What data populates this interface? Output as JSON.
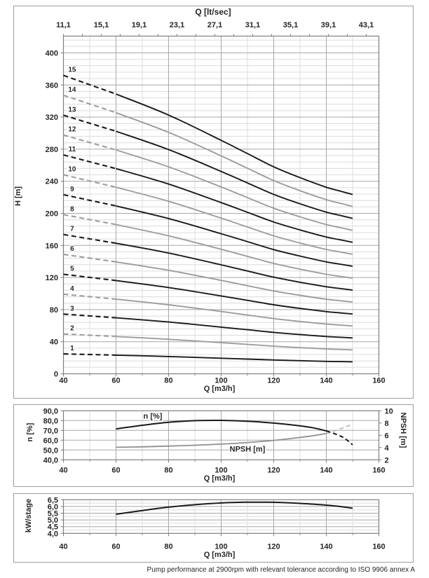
{
  "footer": "Pump performance at 2900rpm with relevant tolerance according to ISO 9906 annex A",
  "colors": {
    "curve_black": "#1a1a1a",
    "curve_gray": "#9d9d9d",
    "dashed_light_gray": "#b8b8b8",
    "grid_major": "#a8a8a8",
    "grid_minor": "#dcdcdc",
    "axis_frame": "#7f7f7f",
    "text": "#262626"
  },
  "chart_data": [
    {
      "id": "head_capacity",
      "type": "line",
      "top_axis_title": "Q [lt/sec]",
      "xlabel": "Q [m3/h]",
      "ylabel": "H [m]",
      "xlim": [
        40,
        160
      ],
      "ylim": [
        0,
        421
      ],
      "x_tick_values": [
        40,
        60,
        80,
        100,
        120,
        140,
        160
      ],
      "x_tick_labels": [
        "40",
        "60",
        "80",
        "100",
        "120",
        "140",
        "160"
      ],
      "x_minor_step": 10,
      "y_tick_values": [
        0,
        40,
        80,
        120,
        160,
        200,
        240,
        280,
        320,
        360,
        400
      ],
      "y_tick_labels": [
        "0",
        "40",
        "80",
        "120",
        "160",
        "200",
        "240",
        "280",
        "320",
        "360",
        "400"
      ],
      "y_minor_step": 8,
      "top_axis_labels": [
        "11,1",
        "15,1",
        "19,1",
        "23,1",
        "27,1",
        "31,1",
        "35,1",
        "39,1",
        "43,1"
      ],
      "top_axis_label_q_start": 40,
      "top_axis_label_q_step": 14.4,
      "top_axis_tick_q_step": 7.2,
      "q": [
        40,
        60,
        80,
        100,
        110,
        120,
        130,
        140,
        145,
        150
      ],
      "unit_head_m": [
        24.8,
        23.25,
        21.5,
        19.4,
        18.3,
        17.2,
        16.3,
        15.5,
        15.2,
        14.9
      ],
      "stages": [
        1,
        2,
        3,
        4,
        5,
        6,
        7,
        8,
        9,
        10,
        11,
        12,
        13,
        14,
        15
      ],
      "dashed_until_q": 60,
      "stage_label_q": 43.3
    },
    {
      "id": "efficiency_npsh",
      "type": "line",
      "xlabel": "Q [m3/h]",
      "ylabel_left": "n [%]",
      "ylabel_right": "NPSH [m]",
      "xlim": [
        40,
        160
      ],
      "ylim_left": [
        40,
        90
      ],
      "ylim_right": [
        2,
        10
      ],
      "x_tick_values": [
        40,
        60,
        80,
        100,
        120,
        140,
        160
      ],
      "x_tick_labels": [
        "40",
        "60",
        "80",
        "100",
        "120",
        "140",
        "160"
      ],
      "x_minor_step": 10,
      "left_tick_values": [
        40,
        50,
        60,
        70,
        80,
        90
      ],
      "left_tick_labels": [
        "40,0",
        "50,0",
        "60,0",
        "70,0",
        "80,0",
        "90,0"
      ],
      "right_tick_values": [
        2,
        4,
        6,
        8,
        10
      ],
      "right_tick_labels": [
        "2",
        "4",
        "6",
        "8",
        "10"
      ],
      "series": [
        {
          "name": "efficiency",
          "label": "n [%]",
          "label_pos": {
            "q": 74,
            "v": 84.8
          },
          "axis": "left",
          "solid": [
            [
              60,
              71.5
            ],
            [
              70,
              75.2
            ],
            [
              80,
              78.2
            ],
            [
              90,
              79.9
            ],
            [
              100,
              80.2
            ],
            [
              110,
              79.3
            ],
            [
              120,
              77.4
            ],
            [
              130,
              74.6
            ],
            [
              135,
              72.6
            ],
            [
              140,
              69.5
            ]
          ],
          "dashed": [
            [
              140,
              69.5
            ],
            [
              144,
              65.8
            ],
            [
              147,
              61.8
            ],
            [
              150,
              55.3
            ]
          ]
        },
        {
          "name": "npsh",
          "label": "NPSH [m]",
          "label_pos": {
            "q": 110,
            "v": 51.3
          },
          "axis": "right",
          "solid": [
            [
              60,
              4.05
            ],
            [
              70,
              4.12
            ],
            [
              80,
              4.24
            ],
            [
              90,
              4.38
            ],
            [
              100,
              4.56
            ],
            [
              110,
              4.82
            ],
            [
              120,
              5.17
            ],
            [
              130,
              5.64
            ],
            [
              135,
              5.93
            ],
            [
              140,
              6.28
            ]
          ],
          "dashed": [
            [
              140,
              6.28
            ],
            [
              145,
              7.0
            ],
            [
              150,
              7.82
            ]
          ]
        }
      ]
    },
    {
      "id": "power_per_stage",
      "type": "line",
      "xlabel": "Q [m3/h]",
      "ylabel": "kW/stage",
      "xlim": [
        40,
        160
      ],
      "ylim": [
        4.0,
        6.5
      ],
      "x_tick_values": [
        40,
        60,
        80,
        100,
        120,
        140,
        160
      ],
      "x_tick_labels": [
        "40",
        "60",
        "80",
        "100",
        "120",
        "140",
        "160"
      ],
      "x_minor_step": 10,
      "y_tick_values": [
        4.0,
        4.5,
        5.0,
        5.5,
        6.0,
        6.5
      ],
      "y_tick_labels": [
        "4,0",
        "4,5",
        "5,0",
        "5,5",
        "6,0",
        "6,5"
      ],
      "y_minor_step": 0.25,
      "series": [
        {
          "name": "kw_per_stage",
          "solid": [
            [
              60,
              5.42
            ],
            [
              70,
              5.7
            ],
            [
              80,
              5.95
            ],
            [
              90,
              6.13
            ],
            [
              100,
              6.26
            ],
            [
              110,
              6.32
            ],
            [
              120,
              6.31
            ],
            [
              130,
              6.23
            ],
            [
              140,
              6.1
            ],
            [
              145,
              6.0
            ],
            [
              150,
              5.87
            ]
          ]
        }
      ]
    }
  ]
}
